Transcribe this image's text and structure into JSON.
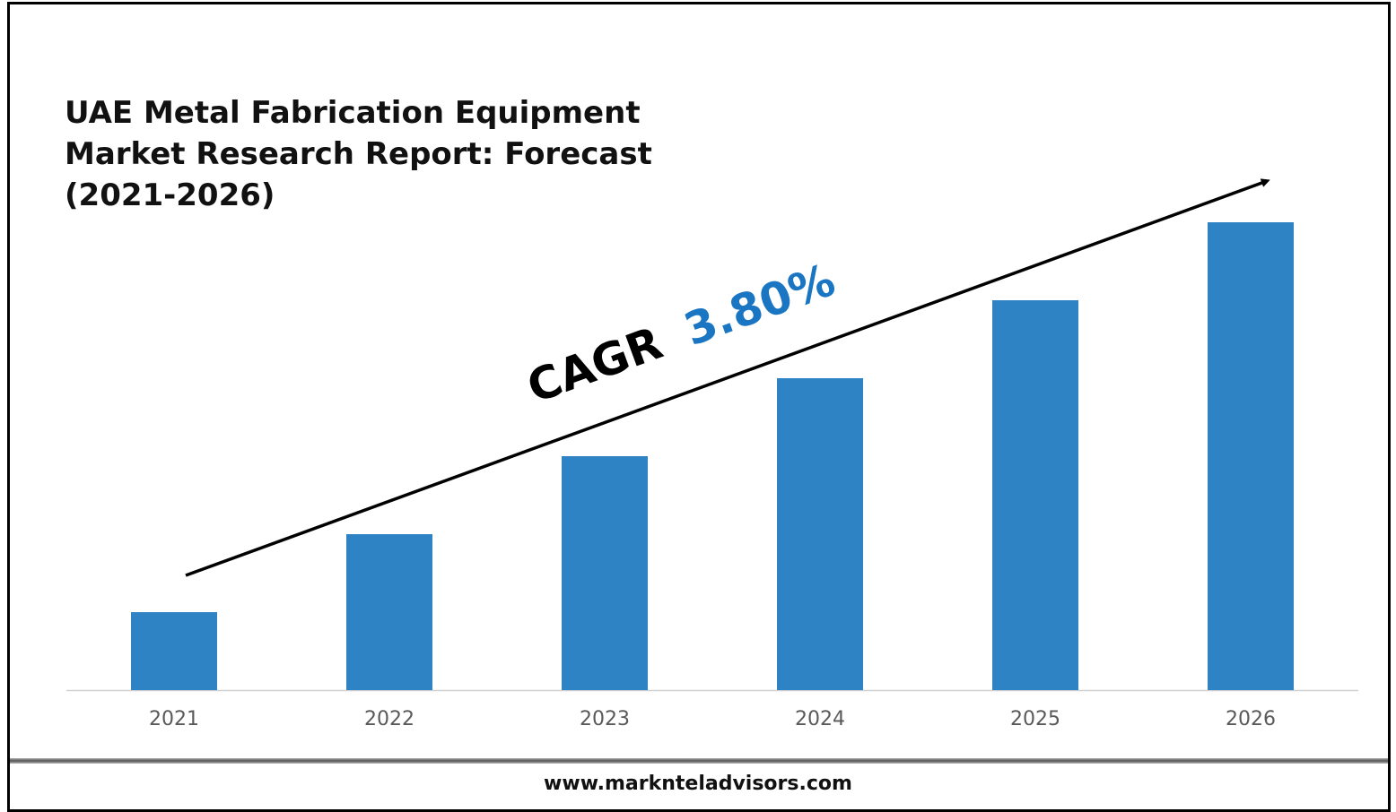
{
  "chart_data": {
    "type": "bar",
    "title_lines": [
      "UAE Metal Fabrication Equipment",
      "Market Research Report: Forecast",
      "(2021-2026)"
    ],
    "categories": [
      "2021",
      "2022",
      "2023",
      "2024",
      "2025",
      "2026"
    ],
    "values": [
      1.0,
      2.0,
      3.0,
      4.0,
      5.0,
      6.0
    ],
    "values_note_unit": "relative",
    "bar_color": "#2e83c4",
    "xlabel": "",
    "ylabel": "",
    "grid": false,
    "annotation": {
      "prefix": "CAGR",
      "value": "3.80%",
      "value_color": "#1a75c2"
    }
  },
  "footer": {
    "website": "www.marknteladvisors.com"
  }
}
